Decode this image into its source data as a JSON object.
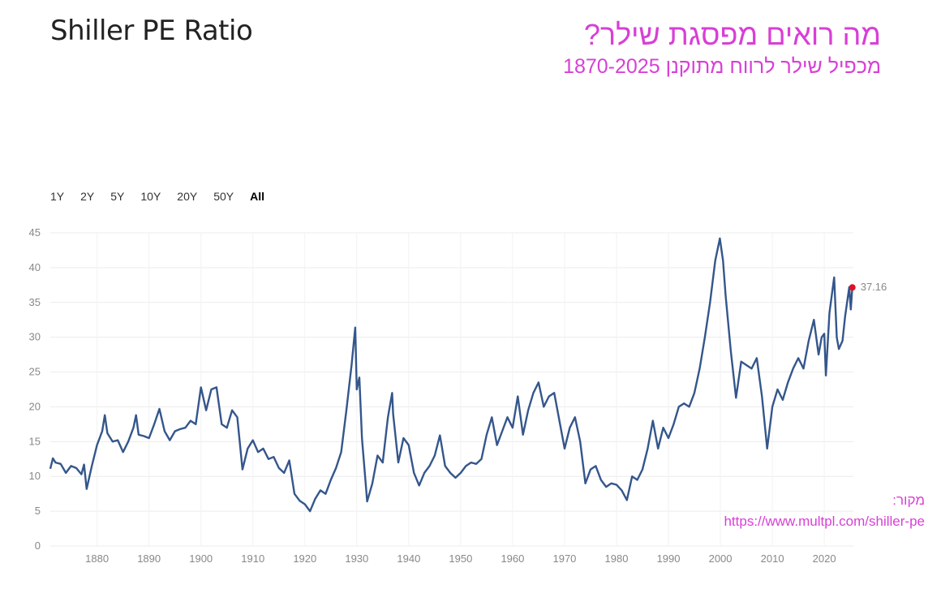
{
  "header": {
    "title": "Shiller PE Ratio",
    "he_title": "מה רואים מפסגת שילר?",
    "he_subtitle": "מכפיל שילר לרווח מתוקנן 1870-2025",
    "accent_color": "#d83fd6"
  },
  "range_buttons": [
    {
      "label": "1Y",
      "active": false
    },
    {
      "label": "2Y",
      "active": false
    },
    {
      "label": "5Y",
      "active": false
    },
    {
      "label": "10Y",
      "active": false
    },
    {
      "label": "20Y",
      "active": false
    },
    {
      "label": "50Y",
      "active": false
    },
    {
      "label": "All",
      "active": true
    }
  ],
  "source": {
    "label": "מקור:",
    "url": "https://www.multpl.com/shiller-pe"
  },
  "chart_data": {
    "type": "line",
    "xlim": [
      1871,
      2025.6
    ],
    "ylim": [
      0,
      45
    ],
    "y_ticks": [
      0,
      5,
      10,
      15,
      20,
      25,
      30,
      35,
      40,
      45
    ],
    "x_ticks": [
      1880,
      1890,
      1900,
      1910,
      1920,
      1930,
      1940,
      1950,
      1960,
      1970,
      1980,
      1990,
      2000,
      2010,
      2020
    ],
    "grid": true,
    "line_color": "#34568b",
    "last_point": {
      "x": 2025.4,
      "y": 37.16,
      "label": "37.16",
      "color": "#e0102a"
    },
    "series": [
      {
        "points": [
          [
            1871,
            11.1
          ],
          [
            1871.5,
            12.6
          ],
          [
            1872,
            12.0
          ],
          [
            1873,
            11.8
          ],
          [
            1874,
            10.5
          ],
          [
            1875,
            11.5
          ],
          [
            1876,
            11.2
          ],
          [
            1877,
            10.3
          ],
          [
            1877.5,
            11.7
          ],
          [
            1878,
            8.2
          ],
          [
            1879,
            11.5
          ],
          [
            1880,
            14.5
          ],
          [
            1881,
            16.5
          ],
          [
            1881.5,
            18.8
          ],
          [
            1882,
            16.2
          ],
          [
            1883,
            15.0
          ],
          [
            1884,
            15.2
          ],
          [
            1885,
            13.5
          ],
          [
            1886,
            15.0
          ],
          [
            1887,
            17.0
          ],
          [
            1887.5,
            18.8
          ],
          [
            1888,
            16.0
          ],
          [
            1889,
            15.8
          ],
          [
            1890,
            15.5
          ],
          [
            1891,
            17.5
          ],
          [
            1892,
            19.7
          ],
          [
            1893,
            16.5
          ],
          [
            1894,
            15.2
          ],
          [
            1895,
            16.5
          ],
          [
            1896,
            16.8
          ],
          [
            1897,
            17.0
          ],
          [
            1898,
            18.0
          ],
          [
            1899,
            17.5
          ],
          [
            1900,
            22.8
          ],
          [
            1901,
            19.5
          ],
          [
            1902,
            22.5
          ],
          [
            1903,
            22.8
          ],
          [
            1904,
            17.5
          ],
          [
            1905,
            17.0
          ],
          [
            1906,
            19.5
          ],
          [
            1907,
            18.5
          ],
          [
            1908,
            11.0
          ],
          [
            1909,
            14.0
          ],
          [
            1910,
            15.2
          ],
          [
            1911,
            13.5
          ],
          [
            1912,
            14.0
          ],
          [
            1913,
            12.5
          ],
          [
            1914,
            12.8
          ],
          [
            1915,
            11.2
          ],
          [
            1916,
            10.5
          ],
          [
            1917,
            12.3
          ],
          [
            1918,
            7.5
          ],
          [
            1919,
            6.5
          ],
          [
            1920,
            6.0
          ],
          [
            1921,
            5.0
          ],
          [
            1922,
            6.8
          ],
          [
            1923,
            8.0
          ],
          [
            1924,
            7.5
          ],
          [
            1925,
            9.5
          ],
          [
            1926,
            11.2
          ],
          [
            1927,
            13.5
          ],
          [
            1928,
            19.5
          ],
          [
            1929,
            26.0
          ],
          [
            1929.7,
            31.4
          ],
          [
            1930,
            22.5
          ],
          [
            1930.5,
            24.2
          ],
          [
            1931,
            15.5
          ],
          [
            1932,
            6.4
          ],
          [
            1933,
            9.0
          ],
          [
            1934,
            13.0
          ],
          [
            1935,
            12.0
          ],
          [
            1936,
            18.5
          ],
          [
            1936.8,
            22.0
          ],
          [
            1937,
            19.0
          ],
          [
            1938,
            12.0
          ],
          [
            1939,
            15.5
          ],
          [
            1940,
            14.5
          ],
          [
            1941,
            10.5
          ],
          [
            1942,
            8.7
          ],
          [
            1943,
            10.5
          ],
          [
            1944,
            11.5
          ],
          [
            1945,
            13.0
          ],
          [
            1946,
            15.9
          ],
          [
            1947,
            11.5
          ],
          [
            1948,
            10.5
          ],
          [
            1949,
            9.8
          ],
          [
            1950,
            10.5
          ],
          [
            1951,
            11.5
          ],
          [
            1952,
            12.0
          ],
          [
            1953,
            11.8
          ],
          [
            1954,
            12.5
          ],
          [
            1955,
            16.0
          ],
          [
            1956,
            18.5
          ],
          [
            1957,
            14.5
          ],
          [
            1958,
            16.5
          ],
          [
            1959,
            18.5
          ],
          [
            1960,
            17.0
          ],
          [
            1961,
            21.5
          ],
          [
            1962,
            16.0
          ],
          [
            1963,
            19.5
          ],
          [
            1964,
            22.0
          ],
          [
            1965,
            23.5
          ],
          [
            1966,
            20.0
          ],
          [
            1967,
            21.5
          ],
          [
            1968,
            22.0
          ],
          [
            1969,
            18.0
          ],
          [
            1970,
            14.0
          ],
          [
            1971,
            17.0
          ],
          [
            1972,
            18.5
          ],
          [
            1973,
            15.0
          ],
          [
            1974,
            9.0
          ],
          [
            1975,
            11.0
          ],
          [
            1976,
            11.5
          ],
          [
            1977,
            9.5
          ],
          [
            1978,
            8.5
          ],
          [
            1979,
            9.0
          ],
          [
            1980,
            8.8
          ],
          [
            1981,
            8.0
          ],
          [
            1982,
            6.6
          ],
          [
            1983,
            10.0
          ],
          [
            1984,
            9.5
          ],
          [
            1985,
            11.0
          ],
          [
            1986,
            14.0
          ],
          [
            1987,
            18.0
          ],
          [
            1988,
            14.0
          ],
          [
            1989,
            17.0
          ],
          [
            1990,
            15.5
          ],
          [
            1991,
            17.5
          ],
          [
            1992,
            20.0
          ],
          [
            1993,
            20.5
          ],
          [
            1994,
            20.0
          ],
          [
            1995,
            22.0
          ],
          [
            1996,
            25.5
          ],
          [
            1997,
            30.0
          ],
          [
            1998,
            35.0
          ],
          [
            1999,
            41.0
          ],
          [
            1999.9,
            44.2
          ],
          [
            2000.5,
            41.0
          ],
          [
            2001,
            36.0
          ],
          [
            2002,
            28.0
          ],
          [
            2003,
            21.3
          ],
          [
            2004,
            26.5
          ],
          [
            2005,
            26.0
          ],
          [
            2006,
            25.5
          ],
          [
            2007,
            27.0
          ],
          [
            2008,
            21.5
          ],
          [
            2009,
            14.0
          ],
          [
            2010,
            20.0
          ],
          [
            2011,
            22.5
          ],
          [
            2012,
            21.0
          ],
          [
            2013,
            23.5
          ],
          [
            2014,
            25.5
          ],
          [
            2015,
            27.0
          ],
          [
            2016,
            25.5
          ],
          [
            2017,
            29.5
          ],
          [
            2018,
            32.5
          ],
          [
            2018.9,
            27.5
          ],
          [
            2019.5,
            30.0
          ],
          [
            2020,
            30.5
          ],
          [
            2020.3,
            24.5
          ],
          [
            2021,
            33.5
          ],
          [
            2021.9,
            38.6
          ],
          [
            2022.4,
            30.0
          ],
          [
            2022.8,
            28.3
          ],
          [
            2023.5,
            29.5
          ],
          [
            2024,
            33.0
          ],
          [
            2024.8,
            37.2
          ],
          [
            2025.1,
            34.0
          ],
          [
            2025.4,
            37.16
          ]
        ]
      }
    ]
  }
}
